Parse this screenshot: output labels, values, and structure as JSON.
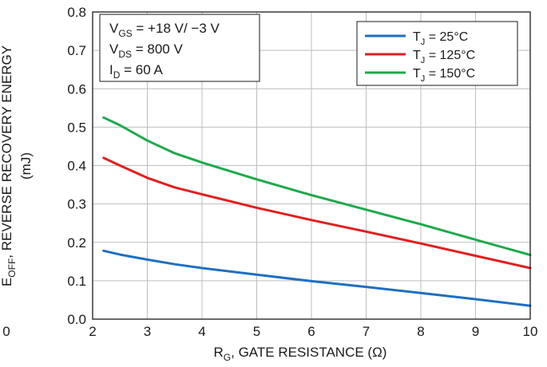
{
  "chart_data": {
    "type": "line",
    "xlabel": {
      "main": "R",
      "sub": "G",
      "rest": ", GATE RESISTANCE (Ω)"
    },
    "ylabel": {
      "main": "E",
      "sub": "OFF",
      "rest": ", REVERSE RECOVERY ENERGY",
      "line2": "(mJ)"
    },
    "xlim": [
      2,
      10
    ],
    "ylim": [
      0,
      0.8
    ],
    "xticks": [
      "2",
      "3",
      "4",
      "5",
      "6",
      "7",
      "8",
      "9",
      "10"
    ],
    "yticks": [
      "0.0",
      "0.1",
      "0.2",
      "0.3",
      "0.4",
      "0.5",
      "0.6",
      "0.7",
      "0.8"
    ],
    "x_origin_label": "0",
    "grid": true,
    "legend_position": "top-right",
    "conditions": [
      {
        "main": "V",
        "sub": "GS",
        "rest": " =  +18 V/ −3 V"
      },
      {
        "main": "V",
        "sub": "DS",
        "rest": " =  800 V"
      },
      {
        "main": "I",
        "sub": "D",
        "rest": " = 60 A"
      }
    ],
    "series": [
      {
        "name": {
          "main": "T",
          "sub": "J",
          "rest": " = 25°C"
        },
        "color": "#1f6fc0",
        "x": [
          2.2,
          2.5,
          3,
          3.5,
          4,
          5,
          6,
          7,
          8,
          9,
          10
        ],
        "y": [
          0.178,
          0.168,
          0.155,
          0.143,
          0.133,
          0.116,
          0.099,
          0.084,
          0.068,
          0.052,
          0.035
        ]
      },
      {
        "name": {
          "main": "T",
          "sub": "J",
          "rest": " = 125°C"
        },
        "color": "#e02020",
        "x": [
          2.2,
          2.5,
          3,
          3.5,
          4,
          5,
          6,
          7,
          8,
          9,
          10
        ],
        "y": [
          0.42,
          0.4,
          0.368,
          0.343,
          0.325,
          0.29,
          0.258,
          0.228,
          0.197,
          0.165,
          0.133
        ]
      },
      {
        "name": {
          "main": "T",
          "sub": "J",
          "rest": " = 150°C"
        },
        "color": "#1fa84c",
        "x": [
          2.2,
          2.5,
          3,
          3.5,
          4,
          5,
          6,
          7,
          8,
          9,
          10
        ],
        "y": [
          0.525,
          0.505,
          0.465,
          0.432,
          0.408,
          0.364,
          0.323,
          0.285,
          0.247,
          0.207,
          0.167
        ]
      }
    ]
  }
}
